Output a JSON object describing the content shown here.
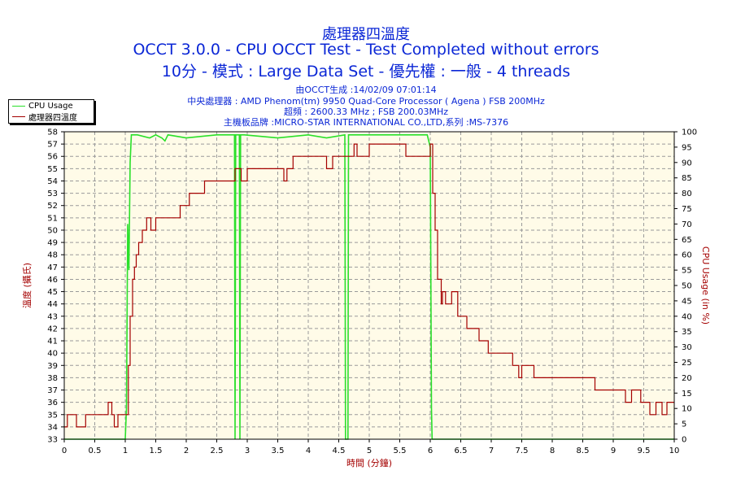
{
  "title": "處理器四溫度",
  "subtitle1": "OCCT 3.0.0 - CPU OCCT Test - Test Completed without errors",
  "subtitle2": "10分 - 模式 : Large Data Set - 優先權 : 一般 - 4 threads",
  "info": {
    "line1": "由OCCT生成 :14/02/09 07:01:14",
    "line2": "中央處理器 : AMD Phenom(tm) 9950 Quad-Core Processor ( Agena ) FSB 200MHz",
    "line3": "超頻 : 2600.33 MHz ; FSB 200.03MHz",
    "line4": "主機板品牌 :MICRO-STAR INTERNATIONAL CO.,LTD,系列 :MS-7376"
  },
  "colors": {
    "text": "#0b27d6",
    "plot_bg": "#fffbe8",
    "cpu": "#2ae02a",
    "temp": "#a40000",
    "axis_label": "#a40000"
  },
  "chart_data": {
    "type": "line",
    "xlabel": "時間 (分鐘)",
    "ylabel_left": "溫度 (攝氏)",
    "ylabel_right": "CPU Usage (in %)",
    "xlim": [
      0,
      10
    ],
    "ylim_left": [
      33,
      58
    ],
    "ylim_right": [
      0,
      100
    ],
    "grid": true,
    "legend_position": "top-left",
    "x_ticks": [
      "0",
      "0.5",
      "1",
      "1.5",
      "2",
      "2.5",
      "3",
      "3.5",
      "4",
      "4.5",
      "5",
      "5.5",
      "6",
      "6.5",
      "7",
      "7.5",
      "8",
      "8.5",
      "9",
      "9.5",
      "10"
    ],
    "y_left_ticks": [
      "33",
      "34",
      "35",
      "36",
      "37",
      "38",
      "39",
      "40",
      "41",
      "42",
      "43",
      "44",
      "45",
      "46",
      "47",
      "48",
      "49",
      "50",
      "51",
      "52",
      "53",
      "54",
      "55",
      "56",
      "57",
      "58"
    ],
    "y_right_ticks": [
      "0",
      "5",
      "10",
      "15",
      "20",
      "25",
      "30",
      "35",
      "40",
      "45",
      "50",
      "55",
      "60",
      "65",
      "70",
      "75",
      "80",
      "85",
      "90",
      "95",
      "100"
    ],
    "series": [
      {
        "name": "CPU Usage",
        "axis": "right",
        "x": [
          0,
          1.0,
          1.02,
          1.04,
          1.06,
          1.08,
          1.1,
          1.12,
          1.14,
          1.2,
          1.4,
          1.5,
          1.6,
          1.65,
          1.7,
          2.0,
          2.5,
          2.79,
          2.8,
          2.81,
          2.87,
          2.88,
          2.89,
          2.95,
          3.5,
          4.0,
          4.3,
          4.6,
          4.61,
          4.65,
          4.66,
          4.67,
          5.0,
          5.5,
          5.95,
          6.0,
          6.02,
          6.03,
          6.1,
          10
        ],
        "y": [
          0,
          0,
          10,
          70,
          55,
          90,
          99,
          99,
          99,
          99,
          98,
          99,
          98,
          97,
          99,
          98,
          99,
          99,
          0,
          99,
          99,
          0,
          99,
          99,
          98,
          99,
          98,
          99,
          0,
          0,
          99,
          99,
          99,
          99,
          99,
          95,
          10,
          0,
          0,
          0
        ]
      },
      {
        "name": "處理器四溫度",
        "axis": "left",
        "x": [
          0,
          0.05,
          0.05,
          0.2,
          0.2,
          0.35,
          0.35,
          0.72,
          0.72,
          0.78,
          0.78,
          0.82,
          0.82,
          0.88,
          0.88,
          0.92,
          0.92,
          1.05,
          1.05,
          1.08,
          1.08,
          1.12,
          1.12,
          1.15,
          1.15,
          1.18,
          1.18,
          1.22,
          1.22,
          1.28,
          1.28,
          1.35,
          1.35,
          1.42,
          1.42,
          1.5,
          1.5,
          1.6,
          1.6,
          1.9,
          1.9,
          2.05,
          2.05,
          2.3,
          2.3,
          2.7,
          2.7,
          2.8,
          2.8,
          2.9,
          2.9,
          3.0,
          3.0,
          3.6,
          3.6,
          3.65,
          3.65,
          3.75,
          3.75,
          3.85,
          3.85,
          4.3,
          4.3,
          4.4,
          4.4,
          4.75,
          4.75,
          4.8,
          4.8,
          5.0,
          5.0,
          5.6,
          5.6,
          5.95,
          5.95,
          6.0,
          6.0,
          6.04,
          6.04,
          6.08,
          6.08,
          6.12,
          6.12,
          6.18,
          6.18,
          6.2,
          6.2,
          6.25,
          6.25,
          6.35,
          6.35,
          6.45,
          6.45,
          6.6,
          6.6,
          6.8,
          6.8,
          6.95,
          6.95,
          7.35,
          7.35,
          7.45,
          7.45,
          7.5,
          7.5,
          7.7,
          7.7,
          8.7,
          8.7,
          9.2,
          9.2,
          9.3,
          9.3,
          9.45,
          9.45,
          9.6,
          9.6,
          9.7,
          9.7,
          9.8,
          9.8,
          9.88,
          9.88,
          10
        ],
        "y": [
          34,
          34,
          35,
          35,
          34,
          34,
          35,
          35,
          36,
          36,
          35,
          35,
          34,
          34,
          35,
          35,
          35,
          35,
          39,
          39,
          43,
          43,
          46,
          46,
          47,
          47,
          48,
          48,
          49,
          49,
          50,
          50,
          51,
          51,
          50,
          50,
          51,
          51,
          51,
          51,
          52,
          52,
          53,
          53,
          54,
          54,
          54,
          54,
          55,
          55,
          54,
          54,
          55,
          55,
          54,
          54,
          55,
          55,
          56,
          56,
          56,
          56,
          55,
          55,
          56,
          56,
          57,
          57,
          56,
          56,
          57,
          57,
          56,
          56,
          56,
          56,
          57,
          57,
          53,
          53,
          50,
          50,
          46,
          46,
          44,
          44,
          45,
          45,
          44,
          44,
          45,
          45,
          43,
          43,
          42,
          42,
          41,
          41,
          40,
          40,
          39,
          39,
          38,
          38,
          39,
          39,
          38,
          38,
          37,
          37,
          36,
          36,
          37,
          37,
          36,
          36,
          35,
          35,
          36,
          36,
          35,
          35,
          36,
          36
        ]
      }
    ]
  }
}
